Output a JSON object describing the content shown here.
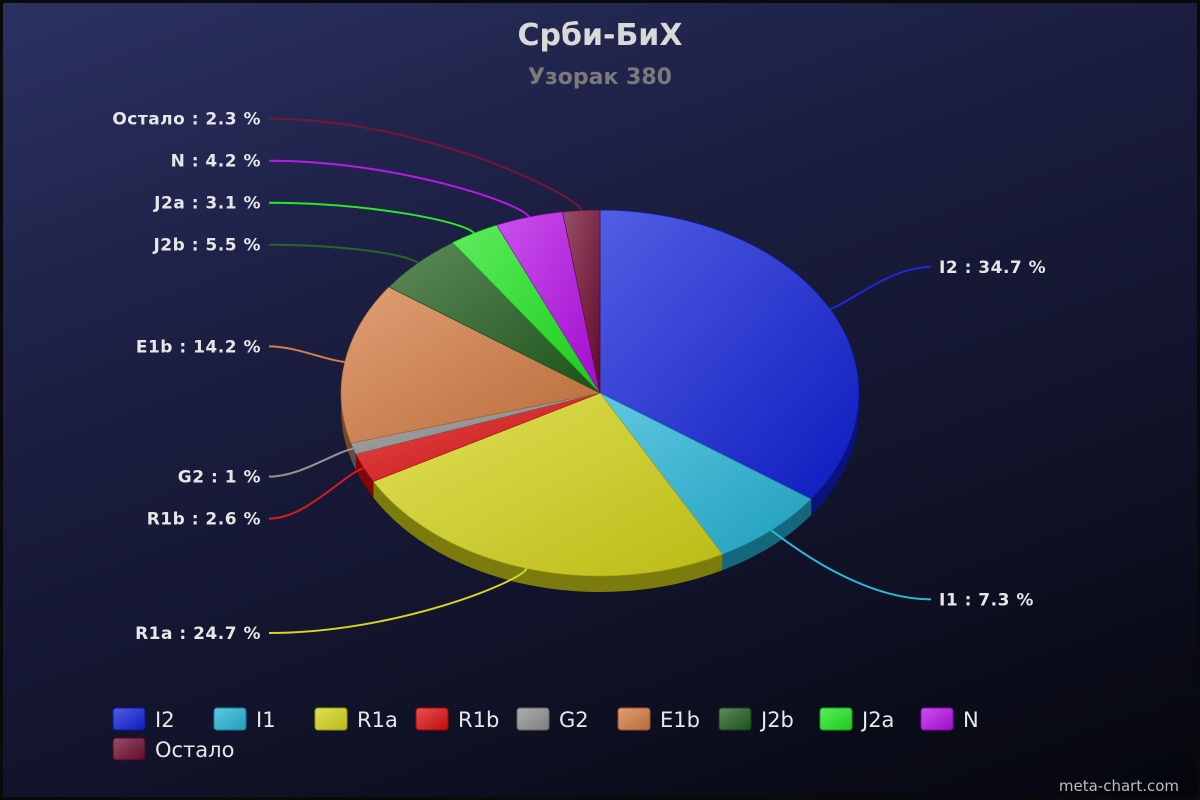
{
  "chart_data": {
    "type": "pie",
    "title": "Срби-БиХ",
    "subtitle": "Узорак 380",
    "legend_position": "bottom-left",
    "label_format": "{name} : {value} %",
    "slices": [
      {
        "name": "I2",
        "value": 34.7,
        "color": "#0f1fd8"
      },
      {
        "name": "I1",
        "value": 7.3,
        "color": "#22b3d6"
      },
      {
        "name": "R1a",
        "value": 24.7,
        "color": "#d4d418"
      },
      {
        "name": "R1b",
        "value": 2.6,
        "color": "#dd0d0d"
      },
      {
        "name": "G2",
        "value": 1,
        "color": "#8f8f8f"
      },
      {
        "name": "E1b",
        "value": 14.2,
        "color": "#d27a40"
      },
      {
        "name": "J2b",
        "value": 5.5,
        "color": "#1f5d1b"
      },
      {
        "name": "J2a",
        "value": 3.1,
        "color": "#1ee61e"
      },
      {
        "name": "N",
        "value": 4.2,
        "color": "#b60ee8"
      },
      {
        "name": "Остало",
        "value": 2.3,
        "color": "#6e0a2e"
      }
    ]
  },
  "watermark": "meta-chart.com"
}
